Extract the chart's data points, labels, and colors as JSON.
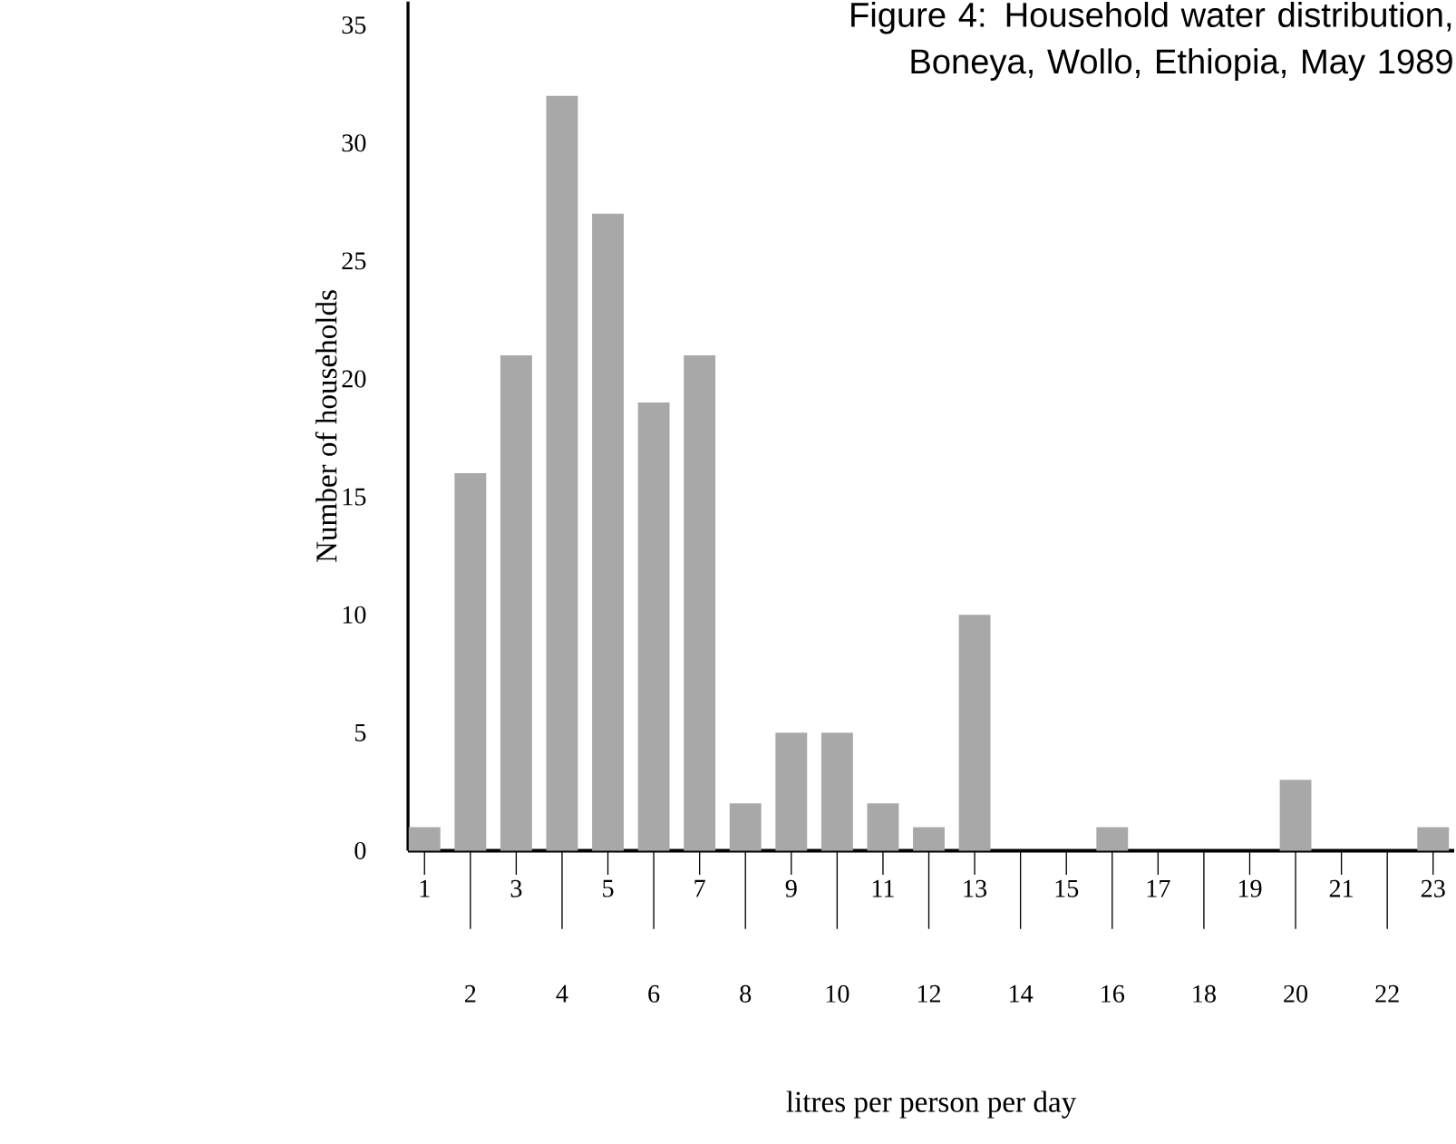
{
  "chart_data": {
    "type": "bar",
    "title": "Figure 4: Household water distribution, Boneya, Wollo, Ethiopia, May 1989",
    "xlabel": "litres per person per day",
    "ylabel": "Number of households",
    "categories": [
      "1",
      "2",
      "3",
      "4",
      "5",
      "6",
      "7",
      "8",
      "9",
      "10",
      "11",
      "12",
      "13",
      "14",
      "15",
      "16",
      "17",
      "18",
      "19",
      "20",
      "21",
      "22",
      "23"
    ],
    "values": [
      1,
      16,
      21,
      32,
      27,
      19,
      21,
      2,
      5,
      5,
      2,
      1,
      10,
      0,
      0,
      1,
      0,
      0,
      0,
      3,
      0,
      0,
      1
    ],
    "color": "#a8a8a8",
    "ylim": [
      0,
      36
    ],
    "yticks": [
      0,
      5,
      10,
      15,
      20,
      25,
      30,
      35
    ]
  }
}
